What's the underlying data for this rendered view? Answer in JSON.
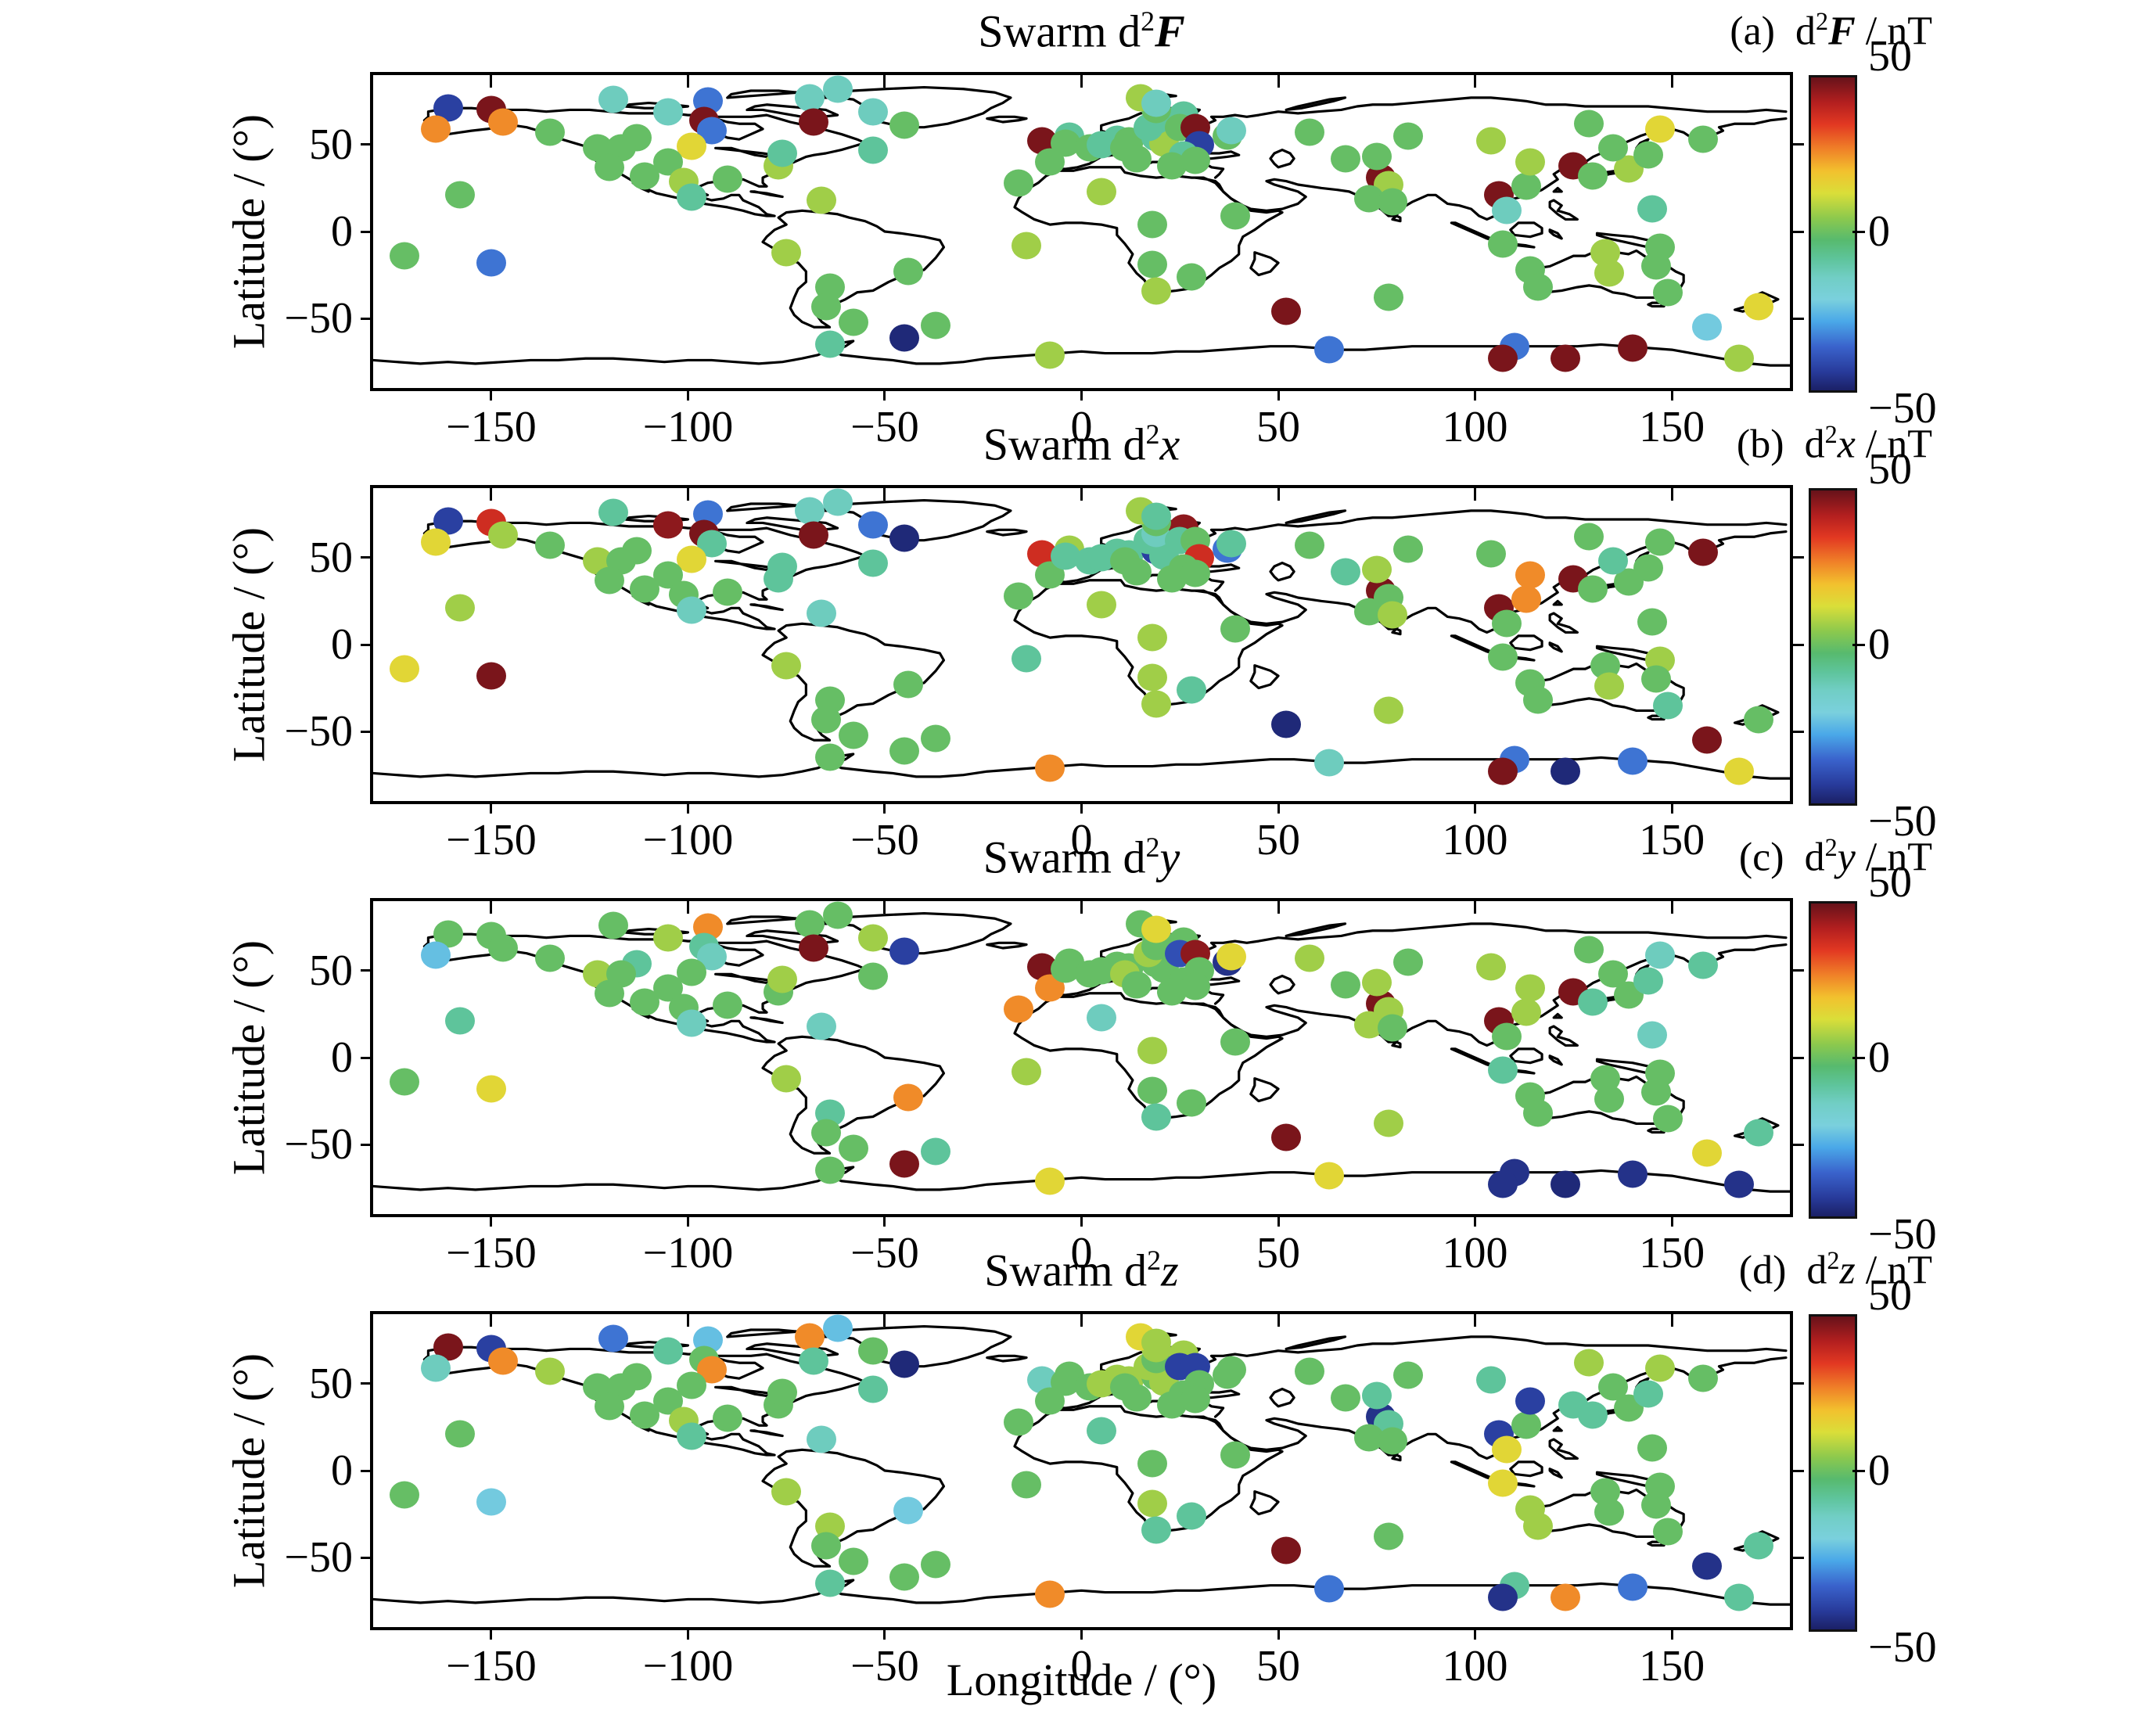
{
  "figure": {
    "xlabel": "Longitude / (°)",
    "ylabel": "Latitude / (°)",
    "x_tick_labels": [
      "−150",
      "−100",
      "−50",
      "0",
      "50",
      "100",
      "150"
    ],
    "x_tick_values": [
      -150,
      -100,
      -50,
      0,
      50,
      100,
      150
    ],
    "y_tick_labels": [
      "50",
      "0",
      "−50"
    ],
    "y_tick_values": [
      50,
      0,
      -50
    ],
    "colorbar": {
      "tick_labels": [
        "50",
        "0",
        "−50"
      ],
      "tick_values": [
        50,
        0,
        -50
      ],
      "min": -50,
      "max": 50,
      "unit": "nT"
    }
  },
  "panels": [
    {
      "index_label": "(a)",
      "title_prefix": "Swarm d",
      "sup": "2",
      "var": "F",
      "unit_suffix": " / nT",
      "bold_var": true
    },
    {
      "index_label": "(b)",
      "title_prefix": "Swarm d",
      "sup": "2",
      "var": "x",
      "unit_suffix": " / nT",
      "bold_var": false
    },
    {
      "index_label": "(c)",
      "title_prefix": "Swarm d",
      "sup": "2",
      "var": "y",
      "unit_suffix": " / nT",
      "bold_var": false
    },
    {
      "index_label": "(d)",
      "title_prefix": "Swarm d",
      "sup": "2",
      "var": "z",
      "unit_suffix": " / nT",
      "bold_var": false
    }
  ],
  "colors": {
    "stops": [
      [
        -50,
        "#1b2066"
      ],
      [
        -44,
        "#283b9b"
      ],
      [
        -36,
        "#3a63cc"
      ],
      [
        -28,
        "#4aa8e8"
      ],
      [
        -21,
        "#7ad0dd"
      ],
      [
        -14,
        "#71cec5"
      ],
      [
        -8,
        "#5ec49b"
      ],
      [
        -2,
        "#57ba6e"
      ],
      [
        5,
        "#8cc94d"
      ],
      [
        13,
        "#dade39"
      ],
      [
        20,
        "#f2c12e"
      ],
      [
        27,
        "#f08228"
      ],
      [
        35,
        "#e23822"
      ],
      [
        42,
        "#b31f1f"
      ],
      [
        50,
        "#67121a"
      ]
    ]
  },
  "chart_data": {
    "type": "scatter",
    "projection": "equirectangular world map",
    "xlabel": "Longitude / (°)",
    "ylabel": "Latitude / (°)",
    "xlim": [
      -180,
      180
    ],
    "ylim": [
      -90,
      90
    ],
    "unit": "nT",
    "colorbar_range": [
      -50,
      50
    ],
    "stations_columns": [
      "lon",
      "lat"
    ],
    "stations": [
      [
        -161,
        71
      ],
      [
        -150,
        70
      ],
      [
        -164,
        59
      ],
      [
        -147,
        63
      ],
      [
        -135,
        57
      ],
      [
        -119,
        76
      ],
      [
        -95,
        75
      ],
      [
        -105,
        69
      ],
      [
        -62,
        82
      ],
      [
        -69,
        77
      ],
      [
        -53,
        69
      ],
      [
        -68,
        63
      ],
      [
        -45,
        61
      ],
      [
        -96,
        64
      ],
      [
        -94,
        58
      ],
      [
        -99,
        49
      ],
      [
        -113,
        54
      ],
      [
        -123,
        48
      ],
      [
        -117,
        48
      ],
      [
        -120,
        37
      ],
      [
        -111,
        32
      ],
      [
        -105,
        40
      ],
      [
        -101,
        29
      ],
      [
        -90,
        30
      ],
      [
        -77,
        38
      ],
      [
        -76,
        45
      ],
      [
        -53,
        47
      ],
      [
        -99,
        20
      ],
      [
        -66,
        18
      ],
      [
        -158,
        21
      ],
      [
        -172,
        -14
      ],
      [
        -150,
        -18
      ],
      [
        -75,
        -12
      ],
      [
        -44,
        -23
      ],
      [
        -64,
        -32
      ],
      [
        -65,
        -43
      ],
      [
        -58,
        -52
      ],
      [
        -64,
        -65
      ],
      [
        -45,
        -61
      ],
      [
        -37,
        -54
      ],
      [
        -14,
        -8
      ],
      [
        -16,
        28
      ],
      [
        -8,
        -71
      ],
      [
        -10,
        52
      ],
      [
        -3,
        55
      ],
      [
        -8,
        40
      ],
      [
        -4,
        51
      ],
      [
        2,
        48
      ],
      [
        5,
        50
      ],
      [
        9,
        53
      ],
      [
        12,
        52
      ],
      [
        11,
        48
      ],
      [
        14,
        42
      ],
      [
        19,
        54
      ],
      [
        21,
        51
      ],
      [
        17,
        60
      ],
      [
        19,
        64
      ],
      [
        26,
        67
      ],
      [
        19,
        70
      ],
      [
        15,
        77
      ],
      [
        19,
        74
      ],
      [
        25,
        60
      ],
      [
        29,
        60
      ],
      [
        30,
        50
      ],
      [
        37,
        55
      ],
      [
        38,
        58
      ],
      [
        26,
        44
      ],
      [
        23,
        38
      ],
      [
        29,
        41
      ],
      [
        58,
        57
      ],
      [
        5,
        23
      ],
      [
        18,
        4
      ],
      [
        39,
        9
      ],
      [
        18,
        -19
      ],
      [
        28,
        -26
      ],
      [
        19,
        -34
      ],
      [
        52,
        -46
      ],
      [
        78,
        -38
      ],
      [
        63,
        -68
      ],
      [
        76,
        31
      ],
      [
        78,
        27
      ],
      [
        67,
        42
      ],
      [
        75,
        43
      ],
      [
        83,
        55
      ],
      [
        104,
        52
      ],
      [
        73,
        19
      ],
      [
        79,
        17
      ],
      [
        106,
        21
      ],
      [
        108,
        12
      ],
      [
        113,
        26
      ],
      [
        114,
        40
      ],
      [
        125,
        38
      ],
      [
        139,
        36
      ],
      [
        130,
        32
      ],
      [
        144,
        44
      ],
      [
        135,
        48
      ],
      [
        129,
        62
      ],
      [
        147,
        59
      ],
      [
        158,
        53
      ],
      [
        145,
        13
      ],
      [
        107,
        -7
      ],
      [
        133,
        -12
      ],
      [
        147,
        -9
      ],
      [
        114,
        -22
      ],
      [
        134,
        -24
      ],
      [
        146,
        -20
      ],
      [
        116,
        -32
      ],
      [
        149,
        -35
      ],
      [
        172,
        -43
      ],
      [
        159,
        -55
      ],
      [
        110,
        -66
      ],
      [
        107,
        -73
      ],
      [
        123,
        -73
      ],
      [
        140,
        -67
      ],
      [
        167,
        -73
      ]
    ],
    "series": [
      {
        "panel": "a",
        "name": "d2F",
        "values": [
          -43,
          48,
          26,
          26,
          0,
          -13,
          -34,
          -13,
          -13,
          -13,
          -13,
          48,
          0,
          48,
          -34,
          15,
          0,
          0,
          0,
          0,
          0,
          0,
          7,
          0,
          7,
          -8,
          -8,
          -8,
          7,
          0,
          0,
          -34,
          7,
          0,
          0,
          0,
          0,
          -8,
          -48,
          0,
          7,
          0,
          7,
          48,
          -8,
          0,
          0,
          0,
          -8,
          -8,
          0,
          0,
          0,
          -8,
          7,
          -8,
          -8,
          -8,
          0,
          7,
          -13,
          0,
          48,
          -43,
          0,
          -13,
          -8,
          0,
          0,
          0,
          7,
          0,
          0,
          0,
          0,
          7,
          48,
          0,
          -34,
          48,
          7,
          0,
          0,
          0,
          7,
          0,
          0,
          48,
          -13,
          0,
          7,
          48,
          7,
          0,
          0,
          0,
          0,
          15,
          0,
          -8,
          0,
          7,
          0,
          0,
          7,
          0,
          0,
          0,
          15,
          -22,
          -34,
          48,
          48,
          48,
          7
        ]
      },
      {
        "panel": "b",
        "name": "d2x",
        "values": [
          -43,
          38,
          15,
          7,
          0,
          -8,
          -34,
          46,
          -13,
          -13,
          -34,
          48,
          -48,
          48,
          -8,
          15,
          0,
          7,
          0,
          0,
          0,
          0,
          0,
          0,
          -8,
          -8,
          -8,
          -13,
          -13,
          7,
          15,
          48,
          7,
          0,
          0,
          0,
          0,
          0,
          0,
          0,
          -8,
          0,
          26,
          38,
          7,
          0,
          -8,
          -8,
          -8,
          -8,
          -8,
          0,
          0,
          -43,
          -8,
          -8,
          -13,
          46,
          0,
          7,
          -8,
          -8,
          0,
          38,
          -34,
          -8,
          0,
          0,
          0,
          0,
          7,
          7,
          0,
          7,
          -8,
          7,
          -48,
          7,
          -13,
          48,
          0,
          -8,
          7,
          0,
          0,
          0,
          7,
          48,
          0,
          26,
          26,
          48,
          0,
          0,
          0,
          -8,
          0,
          0,
          48,
          0,
          0,
          0,
          7,
          0,
          7,
          0,
          0,
          -8,
          0,
          48,
          -34,
          48,
          -48,
          -34,
          15
        ]
      },
      {
        "panel": "c",
        "name": "d2y",
        "values": [
          0,
          0,
          -24,
          0,
          0,
          0,
          26,
          7,
          0,
          0,
          7,
          48,
          -43,
          -8,
          -13,
          0,
          -8,
          7,
          0,
          0,
          0,
          0,
          0,
          0,
          0,
          7,
          0,
          -13,
          -13,
          -8,
          0,
          15,
          7,
          26,
          -8,
          0,
          0,
          0,
          48,
          -8,
          7,
          26,
          15,
          48,
          0,
          26,
          0,
          0,
          0,
          0,
          0,
          7,
          0,
          0,
          0,
          7,
          0,
          0,
          0,
          0,
          15,
          -40,
          46,
          0,
          -46,
          15,
          0,
          0,
          0,
          7,
          -13,
          7,
          0,
          0,
          0,
          -8,
          48,
          7,
          15,
          48,
          7,
          0,
          7,
          0,
          7,
          7,
          0,
          48,
          0,
          7,
          7,
          48,
          0,
          -8,
          -8,
          0,
          0,
          -13,
          -8,
          -13,
          -8,
          0,
          0,
          0,
          0,
          0,
          0,
          0,
          -8,
          15,
          -46,
          -46,
          -48,
          -46,
          -46
        ]
      },
      {
        "panel": "d",
        "name": "d2z",
        "values": [
          48,
          -43,
          -13,
          26,
          7,
          -34,
          -24,
          -8,
          -24,
          26,
          0,
          -8,
          -48,
          0,
          26,
          0,
          0,
          0,
          0,
          0,
          0,
          0,
          7,
          0,
          0,
          0,
          -8,
          -8,
          -13,
          0,
          0,
          -22,
          7,
          -22,
          7,
          0,
          0,
          -8,
          0,
          0,
          0,
          0,
          26,
          -13,
          0,
          0,
          0,
          0,
          7,
          7,
          7,
          0,
          0,
          0,
          7,
          7,
          0,
          7,
          7,
          15,
          7,
          -43,
          -43,
          0,
          0,
          0,
          0,
          0,
          0,
          0,
          -8,
          0,
          0,
          7,
          -8,
          -8,
          48,
          0,
          -34,
          -46,
          -8,
          0,
          -8,
          0,
          -8,
          0,
          0,
          -43,
          15,
          0,
          -43,
          -8,
          0,
          -8,
          -8,
          0,
          7,
          7,
          0,
          0,
          15,
          0,
          0,
          7,
          0,
          0,
          7,
          0,
          -8,
          -46,
          -8,
          -46,
          26,
          -34,
          -8
        ]
      }
    ]
  }
}
